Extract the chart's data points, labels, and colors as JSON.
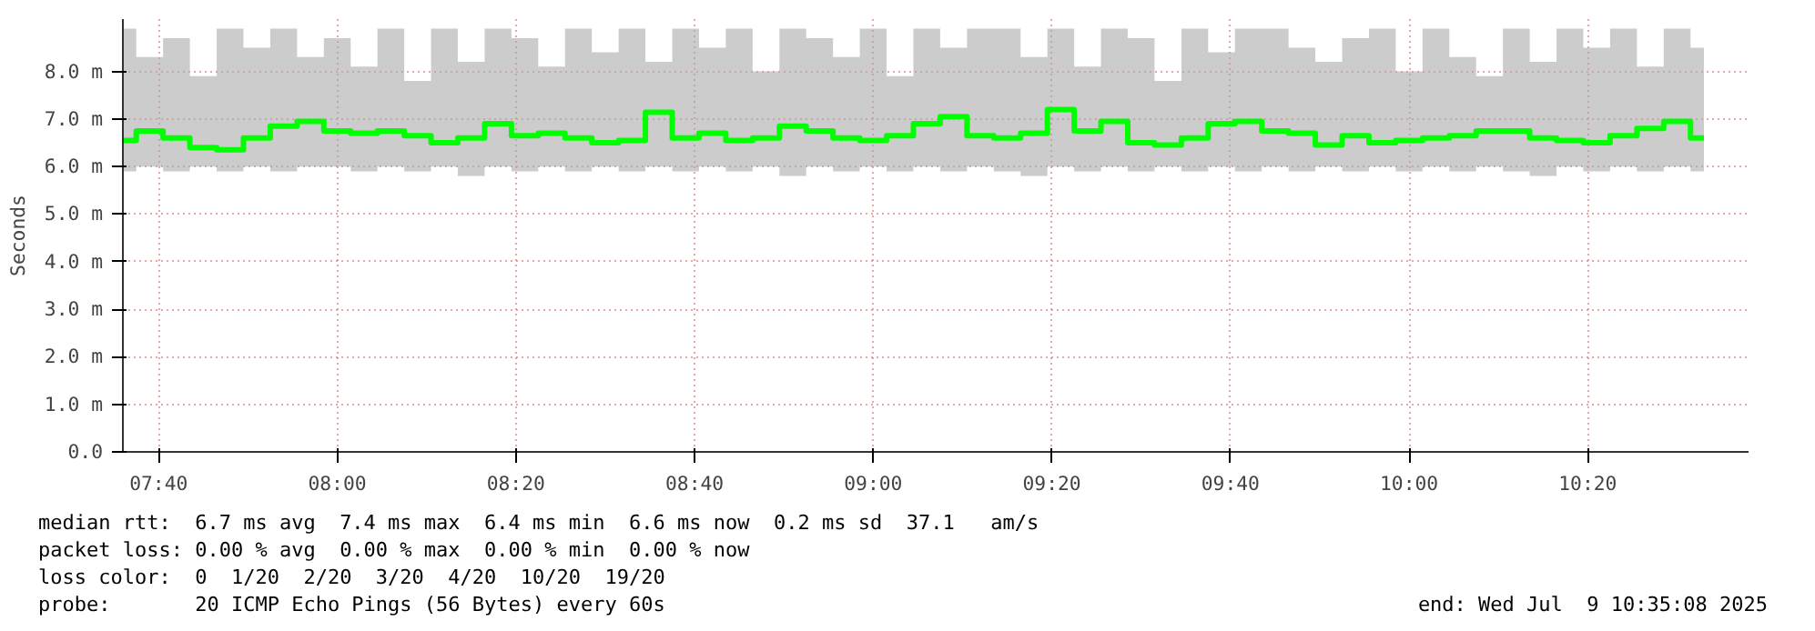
{
  "chart_data": {
    "type": "step",
    "ylabel": "Seconds",
    "x": [
      7.6,
      7.65,
      7.7,
      7.75,
      7.8,
      7.85,
      7.9,
      7.95,
      8.0,
      8.05,
      8.1,
      8.15,
      8.2,
      8.25,
      8.3,
      8.35,
      8.4,
      8.45,
      8.5,
      8.55,
      8.6,
      8.65,
      8.7,
      8.75,
      8.8,
      8.85,
      8.9,
      8.95,
      9.0,
      9.05,
      9.1,
      9.15,
      9.2,
      9.25,
      9.3,
      9.35,
      9.4,
      9.45,
      9.5,
      9.55,
      9.6,
      9.65,
      9.7,
      9.75,
      9.8,
      9.85,
      9.9,
      9.95,
      10.0,
      10.05,
      10.1,
      10.15,
      10.2,
      10.25,
      10.3,
      10.35,
      10.4,
      10.45,
      10.5,
      10.55
    ],
    "series": [
      {
        "color": "#00ff00",
        "values": [
          6.55,
          6.75,
          6.6,
          6.4,
          6.35,
          6.6,
          6.85,
          6.95,
          6.75,
          6.7,
          6.75,
          6.65,
          6.5,
          6.6,
          6.9,
          6.65,
          6.7,
          6.6,
          6.5,
          6.55,
          7.14,
          6.6,
          6.7,
          6.55,
          6.6,
          6.85,
          6.75,
          6.6,
          6.55,
          6.65,
          6.9,
          7.05,
          6.65,
          6.6,
          6.7,
          7.2,
          6.75,
          6.95,
          6.5,
          6.45,
          6.6,
          6.9,
          6.95,
          6.75,
          6.7,
          6.45,
          6.65,
          6.5,
          6.55,
          6.6,
          6.65,
          6.75,
          6.75,
          6.6,
          6.55,
          6.5,
          6.65,
          6.8,
          6.95,
          6.6
        ],
        "lower": [
          5.9,
          6.0,
          5.9,
          6.0,
          5.9,
          6.0,
          5.9,
          6.0,
          6.0,
          5.9,
          6.0,
          5.9,
          6.0,
          5.8,
          6.0,
          5.9,
          6.0,
          5.9,
          6.0,
          5.9,
          6.0,
          5.9,
          6.0,
          5.9,
          6.0,
          5.8,
          6.0,
          5.9,
          6.0,
          5.9,
          6.0,
          5.9,
          6.0,
          5.9,
          5.8,
          6.0,
          5.9,
          6.0,
          5.9,
          6.0,
          5.9,
          6.0,
          5.9,
          6.0,
          5.9,
          6.0,
          5.9,
          6.0,
          5.9,
          6.0,
          5.9,
          6.0,
          5.9,
          5.8,
          6.0,
          5.9,
          6.0,
          5.9,
          6.0,
          5.9
        ],
        "upper": [
          8.9,
          8.3,
          8.7,
          7.9,
          8.9,
          8.5,
          8.9,
          8.3,
          8.7,
          8.1,
          8.9,
          7.8,
          8.9,
          8.2,
          8.9,
          8.7,
          8.1,
          8.9,
          8.4,
          8.9,
          8.2,
          8.9,
          8.5,
          8.9,
          8.0,
          8.9,
          8.7,
          8.3,
          8.9,
          7.9,
          8.9,
          8.5,
          8.9,
          8.9,
          8.3,
          8.9,
          8.1,
          8.9,
          8.7,
          7.8,
          8.9,
          8.4,
          8.9,
          8.9,
          8.5,
          8.2,
          8.7,
          8.9,
          8.0,
          8.9,
          8.3,
          7.9,
          8.9,
          8.2,
          8.9,
          8.5,
          8.9,
          8.1,
          8.9,
          8.5
        ]
      }
    ],
    "xlim": [
      7.6,
      10.6333
    ],
    "ylim": [
      0,
      9.1
    ],
    "xticks": [
      {
        "value": 7.66667,
        "label": "07:40"
      },
      {
        "value": 8.0,
        "label": "08:00"
      },
      {
        "value": 8.33333,
        "label": "08:20"
      },
      {
        "value": 8.66667,
        "label": "08:40"
      },
      {
        "value": 9.0,
        "label": "09:00"
      },
      {
        "value": 9.33333,
        "label": "09:20"
      },
      {
        "value": 9.66667,
        "label": "09:40"
      },
      {
        "value": 10.0,
        "label": "10:00"
      },
      {
        "value": 10.33333,
        "label": "10:20"
      }
    ],
    "yticks": [
      {
        "value": 0,
        "label": "0.0"
      },
      {
        "value": 1,
        "label": "1.0 m"
      },
      {
        "value": 2,
        "label": "2.0 m"
      },
      {
        "value": 3,
        "label": "3.0 m"
      },
      {
        "value": 4,
        "label": "4.0 m"
      },
      {
        "value": 5,
        "label": "5.0 m"
      },
      {
        "value": 6,
        "label": "6.0 m"
      },
      {
        "value": 7,
        "label": "7.0 m"
      },
      {
        "value": 8,
        "label": "8.0 m"
      }
    ],
    "grid": true,
    "annotations": [
      "median rtt:  6.7 ms avg  7.4 ms max  6.4 ms min  6.6 ms now  0.2 ms sd  37.1   am/s",
      "packet loss: 0.00 % avg  0.00 % max  0.00 % min  0.00 % now",
      "loss color:  0  1/20  2/20  3/20  4/20  10/20  19/20",
      "probe:       20 ICMP Echo Pings (56 Bytes) every 60s",
      "end: Wed Jul  9 10:35:08 2025"
    ]
  }
}
